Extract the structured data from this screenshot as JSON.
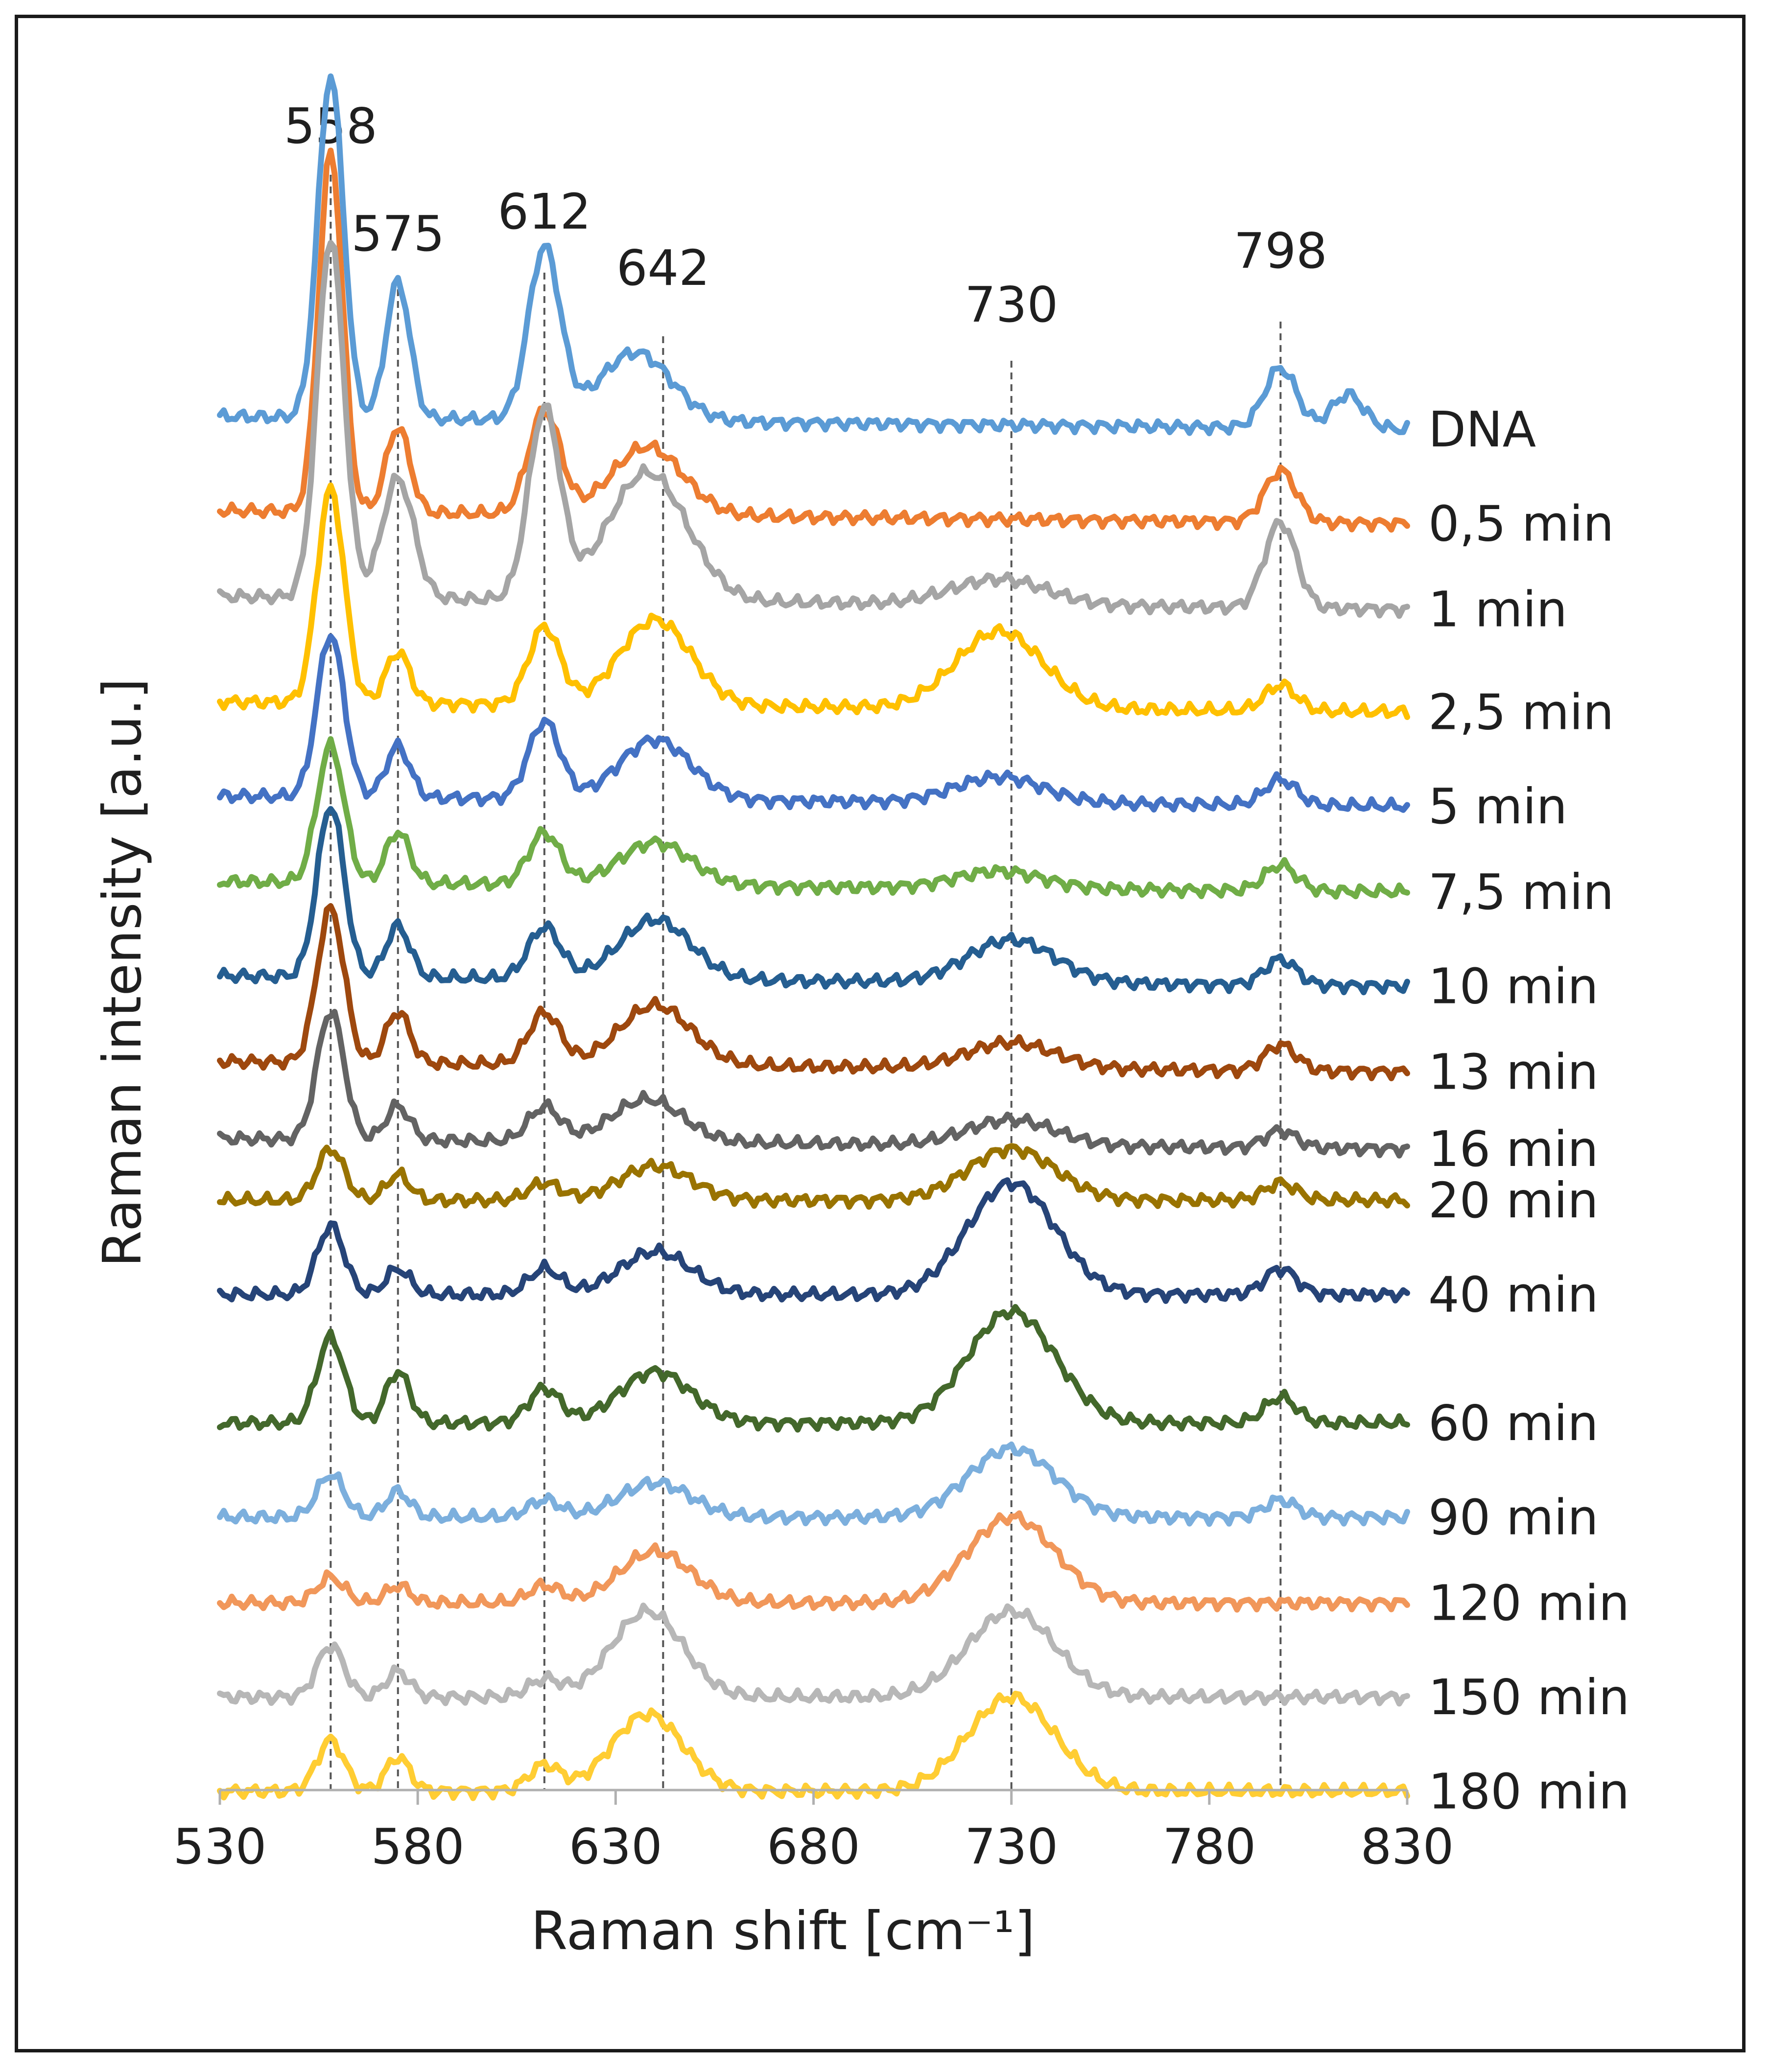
{
  "chart_data": {
    "type": "line",
    "title": "",
    "xlabel": "Raman shift [cm⁻¹]",
    "ylabel": "Raman intensity [a.u.]",
    "xlim": [
      530,
      830
    ],
    "xticks": [
      530,
      580,
      630,
      680,
      730,
      780,
      830
    ],
    "xtick_labels": [
      "530",
      "580",
      "630",
      "680",
      "730",
      "780",
      "830"
    ],
    "grid": false,
    "legend": "inline-right",
    "peak_markers": [
      {
        "x": 558,
        "label": "558"
      },
      {
        "x": 575,
        "label": "575"
      },
      {
        "x": 612,
        "label": "612"
      },
      {
        "x": 642,
        "label": "642"
      },
      {
        "x": 730,
        "label": "730"
      },
      {
        "x": 798,
        "label": "798"
      }
    ],
    "series": [
      {
        "name": "DNA",
        "color": "#5b9bd5",
        "offset": 15.6,
        "slope": 0.15,
        "peaks": [
          [
            558,
            4.0,
            3.2
          ],
          [
            575,
            1.6,
            3.0
          ],
          [
            612,
            2.0,
            4.0
          ],
          [
            635,
            0.8,
            9
          ],
          [
            798,
            0.7,
            4
          ],
          [
            815,
            0.4,
            4
          ]
        ]
      },
      {
        "name": "0,5 min",
        "color": "#ed7d31",
        "offset": 14.5,
        "slope": 0.15,
        "peaks": [
          [
            558,
            4.2,
            3.0
          ],
          [
            575,
            1.0,
            3.0
          ],
          [
            612,
            1.2,
            4.0
          ],
          [
            638,
            0.8,
            9
          ],
          [
            798,
            0.6,
            4
          ]
        ]
      },
      {
        "name": "1 min",
        "color": "#a5a5a5",
        "offset": 13.5,
        "slope": 0.15,
        "peaks": [
          [
            558,
            4.2,
            3.4
          ],
          [
            575,
            1.4,
            4.0
          ],
          [
            612,
            2.2,
            4.0
          ],
          [
            638,
            1.5,
            10
          ],
          [
            727,
            0.3,
            12
          ],
          [
            798,
            1.0,
            4
          ]
        ]
      },
      {
        "name": "2,5 min",
        "color": "#ffc000",
        "offset": 12.3,
        "slope": 0.12,
        "peaks": [
          [
            558,
            2.5,
            3.4
          ],
          [
            575,
            0.6,
            3.0
          ],
          [
            612,
            0.9,
            4.0
          ],
          [
            640,
            1.0,
            9
          ],
          [
            727,
            0.9,
            11
          ],
          [
            798,
            0.3,
            4
          ]
        ]
      },
      {
        "name": "5 min",
        "color": "#4472c4",
        "offset": 11.2,
        "slope": 0.12,
        "peaks": [
          [
            558,
            1.9,
            3.4
          ],
          [
            575,
            0.6,
            3.0
          ],
          [
            612,
            0.9,
            4.0
          ],
          [
            640,
            0.7,
            9
          ],
          [
            727,
            0.3,
            11
          ],
          [
            798,
            0.3,
            4
          ]
        ]
      },
      {
        "name": "7,5 min",
        "color": "#70ad47",
        "offset": 10.2,
        "slope": 0.12,
        "peaks": [
          [
            558,
            1.6,
            3.4
          ],
          [
            575,
            0.6,
            3.0
          ],
          [
            612,
            0.6,
            4.0
          ],
          [
            640,
            0.5,
            9
          ],
          [
            727,
            0.2,
            11
          ],
          [
            798,
            0.3,
            4
          ]
        ]
      },
      {
        "name": "10 min",
        "color": "#255e91",
        "offset": 9.1,
        "slope": 0.12,
        "peaks": [
          [
            558,
            2.0,
            3.4
          ],
          [
            575,
            0.6,
            3.0
          ],
          [
            612,
            0.6,
            4.0
          ],
          [
            640,
            0.7,
            9
          ],
          [
            730,
            0.5,
            11
          ],
          [
            798,
            0.3,
            4
          ]
        ]
      },
      {
        "name": "13 min",
        "color": "#9e480e",
        "offset": 8.1,
        "slope": 0.12,
        "peaks": [
          [
            558,
            1.8,
            3.4
          ],
          [
            575,
            0.6,
            3.0
          ],
          [
            612,
            0.6,
            4.0
          ],
          [
            640,
            0.7,
            9
          ],
          [
            730,
            0.3,
            11
          ],
          [
            798,
            0.3,
            4
          ]
        ]
      },
      {
        "name": "16 min",
        "color": "#636363",
        "offset": 7.2,
        "slope": 0.12,
        "peaks": [
          [
            558,
            1.5,
            3.4
          ],
          [
            575,
            0.4,
            3.0
          ],
          [
            612,
            0.4,
            4.0
          ],
          [
            638,
            0.5,
            9
          ],
          [
            730,
            0.3,
            11
          ],
          [
            798,
            0.2,
            4
          ]
        ]
      },
      {
        "name": "20 min",
        "color": "#997300",
        "offset": 6.6,
        "slope": 0.0,
        "peaks": [
          [
            558,
            0.6,
            3.4
          ],
          [
            575,
            0.3,
            3.0
          ],
          [
            612,
            0.2,
            4.0
          ],
          [
            640,
            0.4,
            9
          ],
          [
            730,
            0.6,
            11
          ],
          [
            798,
            0.2,
            4
          ]
        ]
      },
      {
        "name": "40 min",
        "color": "#264478",
        "offset": 5.5,
        "slope": 0.0,
        "peaks": [
          [
            558,
            0.8,
            3.4
          ],
          [
            575,
            0.3,
            3.0
          ],
          [
            612,
            0.3,
            4.0
          ],
          [
            640,
            0.5,
            9
          ],
          [
            730,
            1.3,
            11
          ],
          [
            798,
            0.3,
            4
          ]
        ]
      },
      {
        "name": "60 min",
        "color": "#43682b",
        "offset": 4.0,
        "slope": 0.0,
        "peaks": [
          [
            558,
            1.0,
            3.4
          ],
          [
            575,
            0.6,
            3.0
          ],
          [
            612,
            0.4,
            4.0
          ],
          [
            640,
            0.6,
            9
          ],
          [
            730,
            1.3,
            11
          ],
          [
            798,
            0.3,
            4
          ]
        ]
      },
      {
        "name": "90 min",
        "color": "#7cafdd",
        "offset": 2.9,
        "slope": 0.0,
        "peaks": [
          [
            558,
            0.5,
            3.4
          ],
          [
            575,
            0.3,
            3.0
          ],
          [
            612,
            0.2,
            4.0
          ],
          [
            640,
            0.4,
            9
          ],
          [
            730,
            0.8,
            11
          ],
          [
            798,
            0.2,
            4
          ]
        ]
      },
      {
        "name": "120 min",
        "color": "#f1975a",
        "offset": 1.9,
        "slope": 0.0,
        "peaks": [
          [
            558,
            0.3,
            3.4
          ],
          [
            575,
            0.2,
            3.0
          ],
          [
            612,
            0.2,
            4.0
          ],
          [
            640,
            0.6,
            9
          ],
          [
            730,
            1.0,
            11
          ]
        ]
      },
      {
        "name": "150 min",
        "color": "#b7b7b7",
        "offset": 0.8,
        "slope": 0.0,
        "peaks": [
          [
            558,
            0.6,
            3.4
          ],
          [
            575,
            0.3,
            3.0
          ],
          [
            612,
            0.2,
            4.0
          ],
          [
            638,
            1.0,
            9
          ],
          [
            730,
            1.0,
            11
          ]
        ]
      },
      {
        "name": "180 min",
        "color": "#ffcd33",
        "offset": -0.3,
        "slope": 0.0,
        "peaks": [
          [
            558,
            0.6,
            3.4
          ],
          [
            575,
            0.4,
            3.0
          ],
          [
            612,
            0.3,
            4.0
          ],
          [
            638,
            0.9,
            9
          ],
          [
            730,
            1.1,
            11
          ]
        ]
      }
    ]
  }
}
